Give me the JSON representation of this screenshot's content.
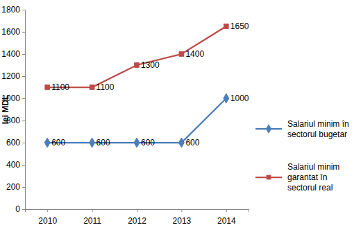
{
  "chart_data": {
    "type": "line",
    "ylabel": "lei MDL",
    "categories": [
      "2010",
      "2011",
      "2012",
      "2013",
      "2014"
    ],
    "series": [
      {
        "name": "Salariul minim în sectorul bugetar",
        "color": "#4a7ebb",
        "marker": "diamond",
        "values": [
          600,
          600,
          600,
          600,
          1000
        ]
      },
      {
        "name": "Salariul minim garantat în sectorul real",
        "color": "#be4b48",
        "marker": "square",
        "values": [
          1100,
          1100,
          1300,
          1400,
          1650
        ]
      }
    ],
    "ylim": [
      0,
      1800
    ],
    "yticks": [
      0,
      200,
      400,
      600,
      800,
      1000,
      1200,
      1400,
      1600,
      1800
    ],
    "grid": false,
    "legend": "right",
    "data_labels": true
  }
}
